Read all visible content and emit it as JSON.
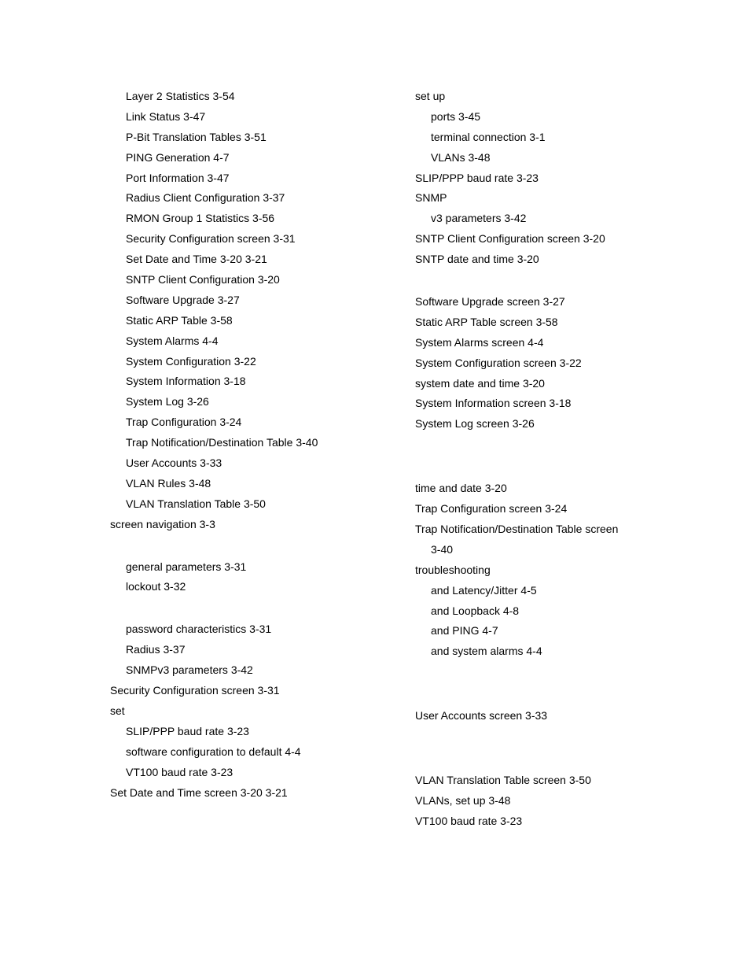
{
  "columns": [
    {
      "entries": [
        {
          "level": 1,
          "text": "Layer 2 Statistics",
          "refs": "3-54"
        },
        {
          "level": 1,
          "text": "Link Status",
          "refs": "3-47"
        },
        {
          "level": 1,
          "text": "P-Bit Translation Tables",
          "refs": "3-51"
        },
        {
          "level": 1,
          "text": "PING Generation",
          "refs": "4-7"
        },
        {
          "level": 1,
          "text": "Port Information",
          "refs": "3-47"
        },
        {
          "level": 1,
          "text": "Radius Client Configuration",
          "refs": "3-37"
        },
        {
          "level": 1,
          "text": "RMON Group 1 Statistics",
          "refs": "3-56"
        },
        {
          "level": 1,
          "text": "Security Configuration screen",
          "refs": "3-31"
        },
        {
          "level": 1,
          "text": "Set Date and Time",
          "refs": "3-20  3-21"
        },
        {
          "level": 1,
          "text": "SNTP Client Configuration",
          "refs": "3-20"
        },
        {
          "level": 1,
          "text": "Software Upgrade",
          "refs": "3-27"
        },
        {
          "level": 1,
          "text": "Static ARP Table",
          "refs": "3-58"
        },
        {
          "level": 1,
          "text": "System Alarms",
          "refs": "4-4"
        },
        {
          "level": 1,
          "text": "System Configuration",
          "refs": "3-22"
        },
        {
          "level": 1,
          "text": "System Information",
          "refs": "3-18"
        },
        {
          "level": 1,
          "text": "System Log",
          "refs": "3-26"
        },
        {
          "level": 1,
          "text": "Trap Configuration",
          "refs": "3-24"
        },
        {
          "level": 1,
          "text": "Trap Notification/Destination Table",
          "refs": "3-40"
        },
        {
          "level": 1,
          "text": "User Accounts",
          "refs": "3-33"
        },
        {
          "level": 1,
          "text": "VLAN Rules",
          "refs": "3-48"
        },
        {
          "level": 1,
          "text": "VLAN Translation Table",
          "refs": "3-50"
        },
        {
          "level": 0,
          "text": "screen navigation",
          "refs": "3-3"
        },
        {
          "spacer": true
        },
        {
          "level": 1,
          "text": "general parameters",
          "refs": "3-31"
        },
        {
          "level": 1,
          "text": "lockout",
          "refs": "3-32"
        },
        {
          "spacer": true
        },
        {
          "level": 1,
          "text": "password characteristics",
          "refs": "3-31"
        },
        {
          "level": 1,
          "text": "Radius",
          "refs": "3-37"
        },
        {
          "level": 1,
          "text": "SNMPv3 parameters",
          "refs": "3-42"
        },
        {
          "level": 0,
          "text": "Security Configuration screen",
          "refs": "3-31"
        },
        {
          "level": 0,
          "text": "set",
          "refs": ""
        },
        {
          "level": 1,
          "text": "SLIP/PPP baud rate",
          "refs": "3-23"
        },
        {
          "level": 1,
          "text": "software configuration to default",
          "refs": "4-4"
        },
        {
          "level": 1,
          "text": "VT100 baud rate",
          "refs": "3-23"
        },
        {
          "level": 0,
          "text": "Set Date and Time screen",
          "refs": "3-20  3-21"
        }
      ]
    },
    {
      "entries": [
        {
          "level": 0,
          "text": "set up",
          "refs": ""
        },
        {
          "level": 1,
          "text": "ports",
          "refs": "3-45"
        },
        {
          "level": 1,
          "text": "terminal connection",
          "refs": "3-1"
        },
        {
          "level": 1,
          "text": "VLANs",
          "refs": "3-48"
        },
        {
          "level": 0,
          "text": "SLIP/PPP baud rate",
          "refs": "3-23"
        },
        {
          "level": 0,
          "text": "SNMP",
          "refs": ""
        },
        {
          "level": 1,
          "text": "v3 parameters",
          "refs": "3-42"
        },
        {
          "level": 0,
          "text": "SNTP Client Configuration screen",
          "refs": "3-20"
        },
        {
          "level": 0,
          "text": "SNTP date and time",
          "refs": "3-20"
        },
        {
          "spacer": true
        },
        {
          "level": 0,
          "text": "Software Upgrade screen",
          "refs": "3-27"
        },
        {
          "level": 0,
          "text": "Static ARP Table screen",
          "refs": "3-58"
        },
        {
          "level": 0,
          "text": "System Alarms screen",
          "refs": "4-4"
        },
        {
          "level": 0,
          "text": "System Configuration screen",
          "refs": "3-22"
        },
        {
          "level": 0,
          "text": "system date and time",
          "refs": "3-20"
        },
        {
          "level": 0,
          "text": "System Information screen",
          "refs": "3-18"
        },
        {
          "level": 0,
          "text": "System Log screen",
          "refs": "3-26"
        },
        {
          "spacer": true
        },
        {
          "spacer": true
        },
        {
          "level": 0,
          "text": "time and date",
          "refs": "3-20"
        },
        {
          "level": 0,
          "text": "Trap Configuration screen",
          "refs": "3-24"
        },
        {
          "level": 0,
          "text": "Trap Notification/Destination Table screen",
          "refs": ""
        },
        {
          "level": 1,
          "text": "3-40",
          "refs": ""
        },
        {
          "level": 0,
          "text": "troubleshooting",
          "refs": ""
        },
        {
          "level": 1,
          "text": "and Latency/Jitter",
          "refs": "4-5"
        },
        {
          "level": 1,
          "text": "and Loopback",
          "refs": "4-8"
        },
        {
          "level": 1,
          "text": "and PING",
          "refs": "4-7"
        },
        {
          "level": 1,
          "text": "and system alarms",
          "refs": "4-4"
        },
        {
          "spacer": true
        },
        {
          "spacer": true
        },
        {
          "level": 0,
          "text": "User Accounts screen",
          "refs": "3-33"
        },
        {
          "spacer": true
        },
        {
          "spacer": true
        },
        {
          "level": 0,
          "text": "VLAN Translation Table screen",
          "refs": "3-50"
        },
        {
          "level": 0,
          "text": "VLANs, set up",
          "refs": "3-48"
        },
        {
          "level": 0,
          "text": "VT100 baud rate",
          "refs": "3-23"
        }
      ]
    }
  ]
}
